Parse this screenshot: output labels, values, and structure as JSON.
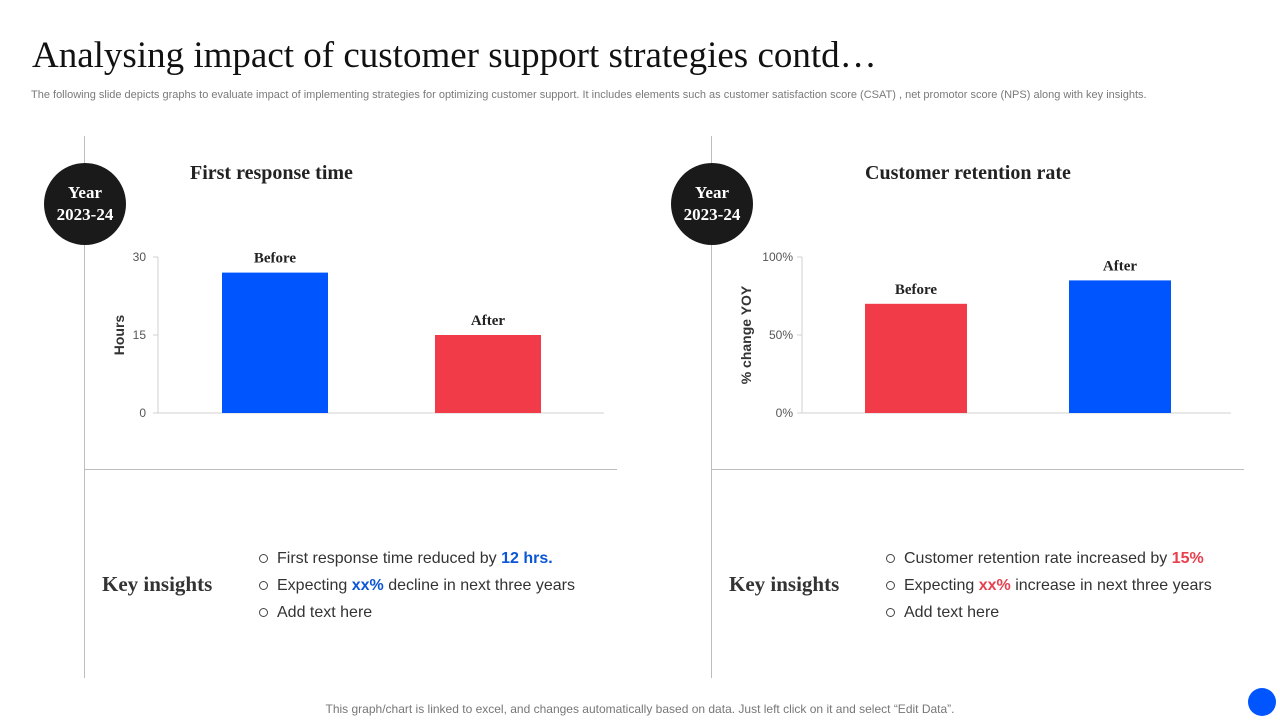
{
  "slide": {
    "title": "Analysing impact of customer support strategies contd…",
    "subtitle": "The following slide depicts graphs to evaluate impact of implementing strategies for optimizing customer support. It includes elements such as customer satisfaction score (CSAT) , net promotor score (NPS) along with key insights.",
    "footer": "This graph/chart is linked to excel, and changes automatically based on data. Just left click on it and select “Edit Data”."
  },
  "left_panel": {
    "badge_line1": "Year",
    "badge_line2": "2023-24",
    "insights_label": "Key insights",
    "insights": [
      {
        "text": "First response time reduced by ",
        "highlight": "12 hrs.",
        "suffix": ""
      },
      {
        "text": "Expecting ",
        "highlight": "xx%",
        "suffix": " decline in next three years"
      },
      {
        "text": "Add text here",
        "highlight": "",
        "suffix": ""
      }
    ]
  },
  "right_panel": {
    "badge_line1": "Year",
    "badge_line2": "2023-24",
    "insights_label": "Key insights",
    "insights": [
      {
        "text": "Customer retention rate increased by ",
        "highlight": "15%",
        "suffix": ""
      },
      {
        "text": "Expecting ",
        "highlight": "xx%",
        "suffix": " increase in next three years"
      },
      {
        "text": "Add text here",
        "highlight": "",
        "suffix": ""
      }
    ]
  },
  "colors": {
    "blue": "#0055ff",
    "red": "#f23b48",
    "highlight_blue": "#0a56d6",
    "highlight_red": "#e8404e"
  },
  "chart_data": [
    {
      "type": "bar",
      "title": "First response time",
      "categories": [
        "Before",
        "After"
      ],
      "values": [
        27,
        15
      ],
      "bar_colors": [
        "#0055ff",
        "#f23b48"
      ],
      "ylabel": "Hours",
      "ylim": [
        0,
        30
      ],
      "yticks": [
        0,
        15,
        30
      ],
      "ytick_labels": [
        "0",
        "15",
        "30"
      ],
      "grid": false
    },
    {
      "type": "bar",
      "title": "Customer retention rate",
      "categories": [
        "Before",
        "After"
      ],
      "values": [
        70,
        85
      ],
      "bar_colors": [
        "#f23b48",
        "#0055ff"
      ],
      "ylabel": "% change YOY",
      "ylim": [
        0,
        100
      ],
      "yticks": [
        0,
        50,
        100
      ],
      "ytick_labels": [
        "0%",
        "50%",
        "100%"
      ],
      "grid": false
    }
  ]
}
